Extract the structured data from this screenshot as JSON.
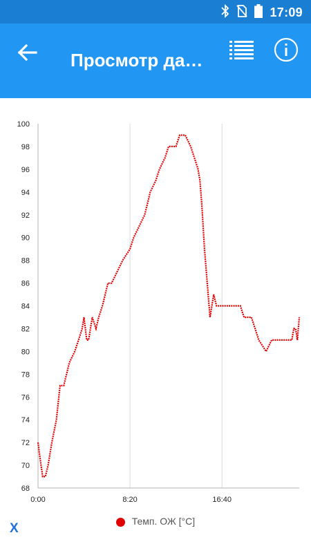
{
  "status_bar": {
    "time": "17:09",
    "icons": [
      "bluetooth-icon",
      "no-sim-icon",
      "battery-icon"
    ]
  },
  "app_bar": {
    "title": "Просмотр да…",
    "back_icon": "arrow-back-icon",
    "list_icon": "list-icon",
    "info_icon": "info-icon"
  },
  "colors": {
    "status_bar": "#1a7fd3",
    "app_bar": "#2196f3",
    "series": "#e00000",
    "close": "#1e6fd9"
  },
  "close_label": "X",
  "chart_data": {
    "type": "line",
    "xlabel": "",
    "ylabel": "",
    "xlim": [
      0,
      1420
    ],
    "ylim": [
      68,
      100
    ],
    "y_ticks": [
      68,
      70,
      72,
      74,
      76,
      78,
      80,
      82,
      84,
      86,
      88,
      90,
      92,
      94,
      96,
      98,
      100
    ],
    "x_ticks": [
      {
        "value": 0,
        "label": "0:00"
      },
      {
        "value": 500,
        "label": "8:20"
      },
      {
        "value": 1000,
        "label": "16:40"
      }
    ],
    "grid": "vertical",
    "legend": "bottom",
    "series": [
      {
        "name": "Темп. ОЖ [°C]",
        "x": [
          0,
          8,
          25,
          40,
          55,
          75,
          100,
          120,
          140,
          170,
          200,
          220,
          240,
          250,
          265,
          275,
          285,
          295,
          315,
          330,
          350,
          380,
          400,
          430,
          460,
          500,
          520,
          550,
          580,
          610,
          640,
          660,
          690,
          710,
          730,
          750,
          770,
          800,
          830,
          850,
          870,
          880,
          890,
          905,
          925,
          935,
          945,
          955,
          970,
          990,
          1010,
          1050,
          1080,
          1100,
          1120,
          1140,
          1160,
          1180,
          1200,
          1240,
          1270,
          1300,
          1330,
          1360,
          1380,
          1390,
          1400,
          1410,
          1420
        ],
        "y": [
          72,
          71,
          69,
          69,
          70,
          72,
          74,
          77,
          77,
          79,
          80,
          81,
          82,
          83,
          81,
          81,
          82,
          83,
          82,
          83,
          84,
          86,
          86,
          87,
          88,
          89,
          90,
          91,
          92,
          94,
          95,
          96,
          97,
          98,
          98,
          98,
          99,
          99,
          98,
          97,
          96,
          95,
          93,
          89,
          85,
          83,
          84,
          85,
          84,
          84,
          84,
          84,
          84,
          84,
          83,
          83,
          83,
          82,
          81,
          80,
          81,
          81,
          81,
          81,
          81,
          82,
          82,
          81,
          83
        ]
      }
    ]
  }
}
